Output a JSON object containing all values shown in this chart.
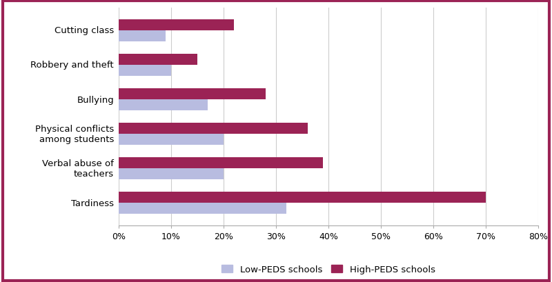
{
  "categories": [
    "Tardiness",
    "Verbal abuse of\nteachers",
    "Physical conflicts\namong students",
    "Bullying",
    "Robbery and theft",
    "Cutting class"
  ],
  "high_peds": [
    0.7,
    0.39,
    0.36,
    0.28,
    0.15,
    0.22
  ],
  "low_peds": [
    0.32,
    0.2,
    0.2,
    0.17,
    0.1,
    0.09
  ],
  "high_peds_color": "#9B2355",
  "low_peds_color": "#B8BCe0",
  "background_color": "#ffffff",
  "border_color": "#9B2355",
  "grid_color": "#cccccc",
  "xlim": [
    0,
    0.8
  ],
  "xticks": [
    0,
    0.1,
    0.2,
    0.3,
    0.4,
    0.5,
    0.6,
    0.7,
    0.8
  ],
  "xtick_labels": [
    "0%",
    "10%",
    "20%",
    "30%",
    "40%",
    "50%",
    "60%",
    "70%",
    "80%"
  ],
  "legend_low": "Low-PEDS schools",
  "legend_high": "High-PEDS schools",
  "bar_height": 0.32,
  "figwidth": 8.0,
  "figheight": 4.1,
  "dpi": 100
}
